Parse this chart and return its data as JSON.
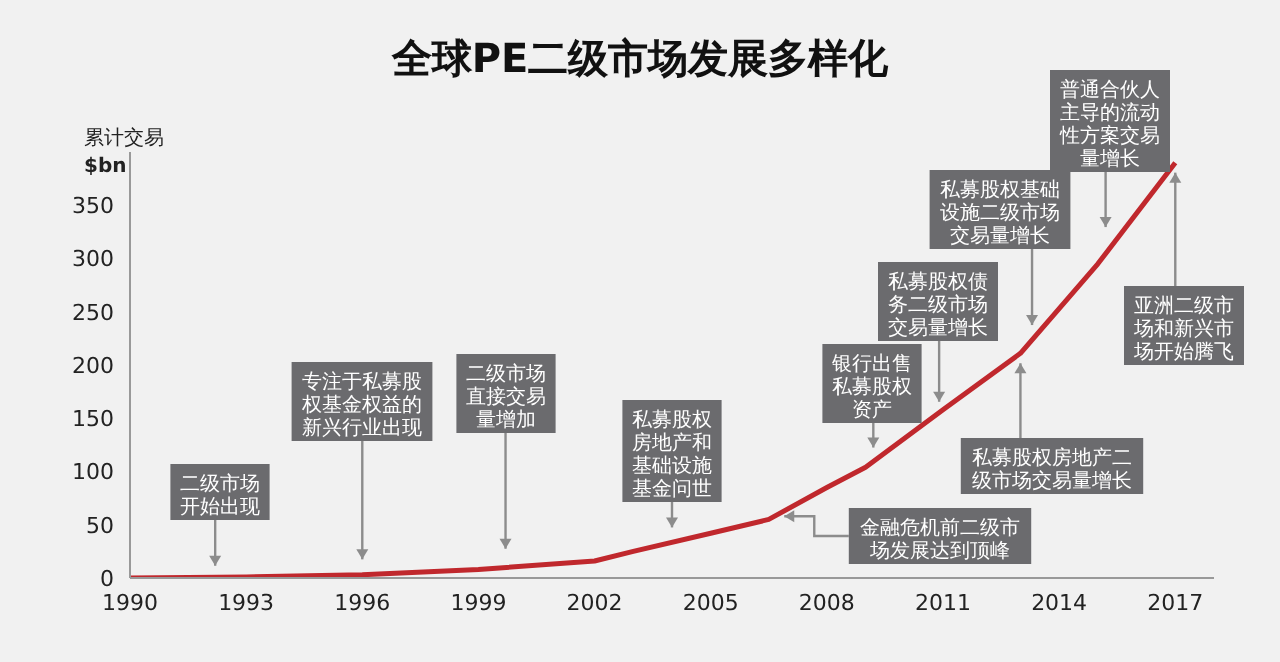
{
  "chart_data": {
    "type": "line",
    "title": "全球PE二级市场发展多样化",
    "ylabel": "累计交易$bn",
    "x": [
      1990,
      1993,
      1996,
      1999,
      2002,
      2003,
      2005,
      2006.5,
      2008,
      2009,
      2011,
      2013,
      2015,
      2017
    ],
    "series": [
      {
        "color": "#c0282d",
        "values": [
          0,
          1,
          3,
          8,
          16,
          25,
          42,
          55,
          85,
          104,
          158,
          211,
          295,
          390
        ]
      }
    ],
    "xlim": [
      1990,
      2018
    ],
    "xticks": [
      1990,
      1993,
      1996,
      1999,
      2002,
      2005,
      2008,
      2011,
      2014,
      2017
    ],
    "ylim": [
      0,
      400
    ],
    "yticks": [
      0,
      50,
      100,
      150,
      200,
      250,
      300,
      350
    ],
    "grid": false,
    "legend": false,
    "marker": "none",
    "line_style": "solid",
    "annotations": [
      {
        "text": "二级市场开始出现",
        "x": 1992.2,
        "y": 4
      },
      {
        "text": "专注于私募股权基金权益的新兴行业出现",
        "x": 1996,
        "y": 10
      },
      {
        "text": "二级市场直接交易量增加",
        "x": 1999.7,
        "y": 20
      },
      {
        "text": "私募股权房地产和基础设施基金问世",
        "x": 2004,
        "y": 40
      },
      {
        "text": "金融危机前二级市场发展达到顶峰",
        "x": 2006.9,
        "y": 58
      },
      {
        "text": "银行出售私募股权资产",
        "x": 2009.2,
        "y": 115
      },
      {
        "text": "私募股权债务二级市场交易量增长",
        "x": 2010.9,
        "y": 158
      },
      {
        "text": "私募股权房地产二级市场交易量增长",
        "x": 2013,
        "y": 211
      },
      {
        "text": "私募股权基础设施二级市场交易量增长",
        "x": 2013.3,
        "y": 230
      },
      {
        "text": "普通合伙人主导的流动性方案交易量增长",
        "x": 2015.2,
        "y": 322
      },
      {
        "text": "亚洲二级市场和新兴市场开始腾飞",
        "x": 2017,
        "y": 390
      }
    ]
  }
}
